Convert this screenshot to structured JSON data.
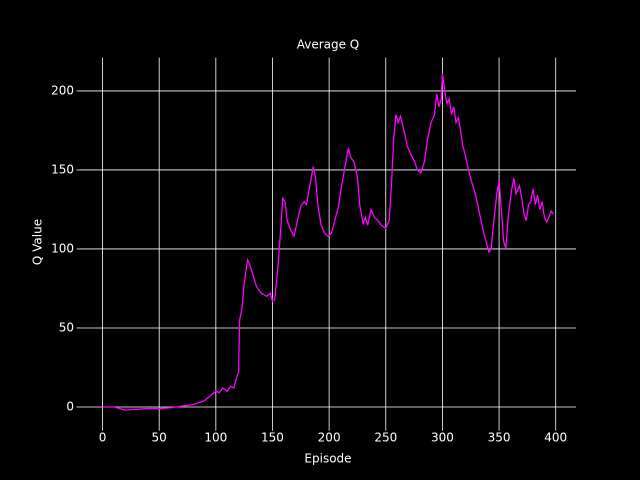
{
  "chart_data": {
    "type": "line",
    "title": "Average Q",
    "xlabel": "Episode",
    "ylabel": "Q Value",
    "color": "#ff00ff",
    "grid": true,
    "xlim": [
      -19.9,
      417.9
    ],
    "ylim": [
      -12.8,
      221.1
    ],
    "xticks": [
      0,
      50,
      100,
      150,
      200,
      250,
      300,
      350,
      400
    ],
    "yticks": [
      0,
      50,
      100,
      150,
      200
    ],
    "x": [
      0,
      10,
      15,
      20,
      30,
      40,
      50,
      60,
      70,
      80,
      90,
      95,
      100,
      103,
      106,
      110,
      113,
      116,
      118,
      120,
      121,
      123,
      125,
      128,
      130,
      133,
      136,
      140,
      145,
      148,
      150,
      152,
      155,
      157,
      159,
      161,
      163,
      166,
      169,
      172,
      175,
      178,
      180,
      183,
      186,
      188,
      190,
      193,
      196,
      199,
      202,
      205,
      208,
      211,
      214,
      217,
      219,
      222,
      225,
      227,
      230,
      232,
      234,
      237,
      240,
      243,
      246,
      250,
      253,
      255,
      257,
      259,
      261,
      263,
      266,
      269,
      272,
      275,
      278,
      281,
      284,
      287,
      290,
      293,
      295,
      297,
      299,
      300,
      302,
      304,
      306,
      308,
      310,
      312,
      314,
      316,
      318,
      320,
      323,
      326,
      329,
      332,
      335,
      338,
      341,
      343,
      345,
      348,
      350,
      352,
      354,
      356,
      358,
      361,
      363,
      365,
      368,
      370,
      372,
      374,
      376,
      378,
      380,
      382,
      384,
      386,
      388,
      390,
      392,
      394,
      396,
      398
    ],
    "values": [
      0,
      0,
      -1,
      -2,
      -1.5,
      -1,
      -1,
      -0.5,
      0.5,
      1.5,
      4,
      7,
      10,
      9,
      12,
      10,
      13,
      12,
      18,
      22,
      55,
      62,
      78,
      93,
      90,
      83,
      76,
      72,
      70,
      72,
      67,
      68,
      90,
      110,
      132,
      130,
      118,
      112,
      108,
      118,
      127,
      130,
      128,
      140,
      152,
      145,
      128,
      115,
      110,
      108,
      110,
      118,
      126,
      140,
      152,
      164,
      158,
      155,
      145,
      128,
      116,
      120,
      115,
      125,
      120,
      118,
      115,
      113,
      118,
      140,
      170,
      185,
      180,
      184,
      175,
      165,
      160,
      156,
      150,
      148,
      155,
      170,
      180,
      185,
      198,
      190,
      195,
      211,
      200,
      192,
      195,
      185,
      190,
      180,
      183,
      175,
      165,
      160,
      150,
      142,
      135,
      125,
      115,
      106,
      98,
      100,
      115,
      135,
      143,
      125,
      105,
      100,
      120,
      137,
      145,
      135,
      140,
      132,
      122,
      118,
      128,
      130,
      138,
      128,
      134,
      125,
      130,
      120,
      117,
      120,
      124,
      122
    ]
  }
}
